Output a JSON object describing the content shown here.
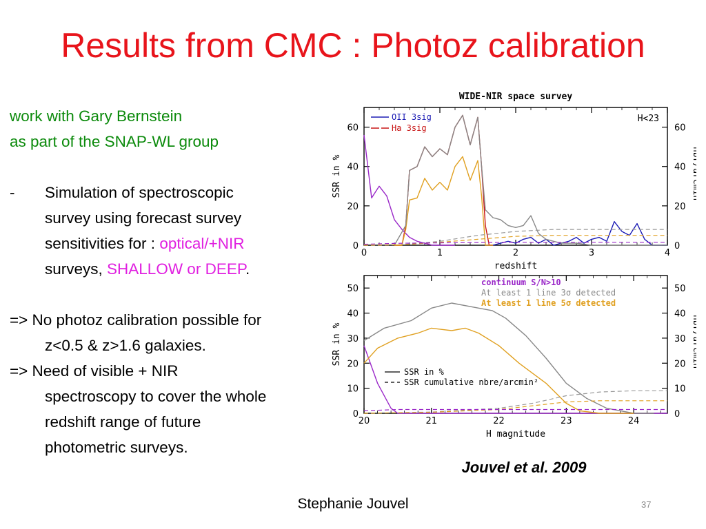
{
  "slide": {
    "title": "Results from CMC : Photoz calibration",
    "line1": "work with Gary Bernstein",
    "line2": "as part of the SNAP-WL group",
    "bullet_dash": "-",
    "bullet_l1": "Simulation of spectroscopic",
    "bullet_l2": "survey using forecast survey",
    "bullet_l3a": "sensitivities for : ",
    "bullet_l3b": "optical/+NIR",
    "bullet_l4a": "surveys, ",
    "bullet_l4b": "SHALLOW or DEEP",
    "bullet_l4c": ".",
    "c1_l1": "=> No photoz calibration possible for",
    "c1_l2": "z<0.5 & z>1.6 galaxies.",
    "c2_l1": "=> Need of visible + NIR",
    "c2_l2": "spectroscopy to cover the whole",
    "c2_l3": "redshift range of future",
    "c2_l4": "photometric surveys.",
    "citation": "Jouvel et al. 2009",
    "author": "Stephanie Jouvel",
    "page": "37"
  },
  "colors": {
    "title": "#e8141b",
    "green": "#0b8a0b",
    "magenta": "#e020e0"
  },
  "chart_data": [
    {
      "type": "line",
      "title": "WIDE-NIR space survey",
      "annotation": "H<23",
      "xlabel": "redshift",
      "ylabel": "SSR in %",
      "y2label": "nbr/arcmin²",
      "xlim": [
        0,
        4
      ],
      "ylim": [
        0,
        70
      ],
      "xticks": [
        "0",
        "1",
        "2",
        "3",
        "4"
      ],
      "yticks": [
        "0",
        "20",
        "40",
        "60"
      ],
      "y2ticks": [
        "0",
        "20",
        "40",
        "60"
      ],
      "legend": [
        "OII 3sig",
        "Ha 3sig"
      ],
      "series": [
        {
          "name": "OII 3sig",
          "color": "#1a1ab4",
          "dashed": false,
          "x": [
            1.6,
            1.7,
            1.8,
            1.9,
            2.0,
            2.1,
            2.2,
            2.3,
            2.4,
            2.5,
            2.6,
            2.7,
            2.8,
            2.9,
            3.0,
            3.1,
            3.2,
            3.3,
            3.4,
            3.5,
            3.6,
            3.7,
            3.8,
            3.9,
            4.0
          ],
          "y": [
            0,
            0,
            1,
            2,
            1,
            3,
            4,
            1,
            3,
            0,
            1,
            2,
            4,
            1,
            3,
            4,
            2,
            12,
            7,
            5,
            11,
            3,
            0,
            0,
            0
          ]
        },
        {
          "name": "Ha 3sig",
          "color": "#c81414",
          "dashed": false,
          "x": [
            0.4,
            0.45,
            0.5,
            0.55,
            0.6,
            0.7,
            0.8,
            0.9,
            1.0,
            1.1,
            1.2,
            1.3,
            1.4,
            1.5,
            1.55,
            1.6,
            1.65,
            1.7
          ],
          "y": [
            0,
            0,
            0,
            10,
            38,
            40,
            50,
            45,
            49,
            46,
            60,
            66,
            51,
            65,
            40,
            10,
            0,
            0
          ]
        },
        {
          "name": "",
          "color": "#9a28c8",
          "dashed": false,
          "x": [
            0.0,
            0.1,
            0.2,
            0.3,
            0.4,
            0.5,
            0.6,
            0.7,
            0.8,
            0.9,
            1.0,
            1.1,
            1.2
          ],
          "y": [
            56,
            24,
            30,
            25,
            13,
            8,
            4,
            2,
            1,
            0,
            0,
            0,
            0
          ]
        },
        {
          "name": "",
          "color": "#e0a020",
          "dashed": false,
          "x": [
            0.4,
            0.5,
            0.55,
            0.6,
            0.7,
            0.8,
            0.9,
            1.0,
            1.1,
            1.2,
            1.3,
            1.4,
            1.5,
            1.55,
            1.6,
            1.7
          ],
          "y": [
            0,
            0,
            8,
            23,
            24,
            34,
            28,
            32,
            28,
            40,
            45,
            33,
            43,
            25,
            0,
            0
          ]
        },
        {
          "name": "",
          "color": "#888888",
          "dashed": false,
          "x": [
            0.4,
            0.55,
            0.6,
            0.7,
            0.8,
            0.9,
            1.0,
            1.1,
            1.2,
            1.3,
            1.4,
            1.5,
            1.55,
            1.6,
            1.7,
            1.8,
            1.9,
            2.0,
            2.1,
            2.2,
            2.3,
            2.4,
            2.5,
            2.6,
            2.8,
            3.0,
            3.5,
            4.0
          ],
          "y": [
            0,
            10,
            38,
            40,
            50,
            45,
            49,
            46,
            60,
            66,
            51,
            65,
            40,
            18,
            14,
            13,
            10,
            9,
            10,
            15,
            6,
            3,
            2,
            1,
            1,
            0,
            0,
            0
          ]
        },
        {
          "name": "",
          "color": "#999999",
          "dashed": true,
          "axis": "y2",
          "x": [
            0,
            0.5,
            1.0,
            1.5,
            2.0,
            2.5,
            3.0,
            3.5,
            4.0
          ],
          "y": [
            0,
            0.3,
            2,
            5,
            7,
            8,
            8,
            8,
            8
          ]
        },
        {
          "name": "",
          "color": "#e0a020",
          "dashed": true,
          "axis": "y2",
          "x": [
            0,
            0.5,
            1.0,
            1.5,
            2.0,
            2.5,
            3.0,
            3.5,
            4.0
          ],
          "y": [
            0,
            0.2,
            1.5,
            3,
            4.5,
            5,
            5,
            5,
            5
          ]
        },
        {
          "name": "",
          "color": "#9a28c8",
          "dashed": true,
          "axis": "y2",
          "x": [
            0,
            0.5,
            1.0,
            1.5,
            2.0,
            2.5,
            3.0,
            3.5,
            4.0
          ],
          "y": [
            0.5,
            1,
            1.2,
            1.4,
            1.5,
            1.5,
            1.5,
            1.5,
            1.5
          ]
        }
      ]
    },
    {
      "type": "line",
      "xlabel": "H magnitude",
      "ylabel": "SSR in %",
      "y2label": "nbr/arcmin²",
      "xlim": [
        20,
        24.5
      ],
      "ylim": [
        0,
        55
      ],
      "xticks": [
        "20",
        "21",
        "22",
        "23",
        "24"
      ],
      "yticks": [
        "0",
        "10",
        "20",
        "30",
        "40",
        "50"
      ],
      "y2ticks": [
        "0",
        "10",
        "20",
        "30",
        "40",
        "50"
      ],
      "legend": [
        "continuum S/N>10",
        "At least 1 line 3σ detected",
        "At least 1 line 5σ detected"
      ],
      "legend_colors": [
        "#9a28c8",
        "#888888",
        "#e0a020"
      ],
      "legend2": [
        "SSR in %",
        "SSR cumulative nbre/arcmin²"
      ],
      "series": [
        {
          "name": "continuum S/N>10",
          "color": "#9a28c8",
          "dashed": false,
          "x": [
            20.0,
            20.2,
            20.4,
            20.5,
            21.0,
            22.0,
            23.0,
            24.0,
            24.5
          ],
          "y": [
            27,
            12,
            2,
            0,
            0,
            0,
            0,
            0,
            0
          ]
        },
        {
          "name": "At least 1 line 3σ detected",
          "color": "#888888",
          "dashed": false,
          "x": [
            20.0,
            20.3,
            20.7,
            21.0,
            21.3,
            21.7,
            21.9,
            22.1,
            22.4,
            22.7,
            23.0,
            23.3,
            23.6,
            24.0,
            24.3
          ],
          "y": [
            29,
            34,
            37,
            42,
            44,
            42,
            41,
            38,
            31,
            22,
            12,
            6,
            2,
            0,
            0
          ]
        },
        {
          "name": "At least 1 line 5σ detected",
          "color": "#e0a020",
          "dashed": false,
          "x": [
            20.0,
            20.2,
            20.5,
            20.8,
            21.0,
            21.3,
            21.5,
            21.7,
            22.0,
            22.3,
            22.7,
            23.0,
            23.2,
            23.5,
            24.0
          ],
          "y": [
            20,
            26,
            30,
            32,
            34,
            33,
            34,
            32,
            27,
            20,
            12,
            4,
            1,
            0,
            0
          ]
        },
        {
          "name": "",
          "color": "#999999",
          "dashed": true,
          "axis": "y2",
          "x": [
            20.0,
            21.0,
            22.0,
            22.5,
            23.0,
            23.5,
            24.0,
            24.5
          ],
          "y": [
            0,
            0.5,
            2,
            4,
            7,
            8.5,
            9,
            9
          ]
        },
        {
          "name": "",
          "color": "#e0a020",
          "dashed": true,
          "axis": "y2",
          "x": [
            20.0,
            21.0,
            22.0,
            22.5,
            23.0,
            23.5,
            24.0,
            24.5
          ],
          "y": [
            0,
            0.4,
            1.5,
            3,
            4.5,
            5,
            5,
            5
          ]
        },
        {
          "name": "",
          "color": "#9a28c8",
          "dashed": true,
          "axis": "y2",
          "x": [
            20.0,
            20.5,
            21.0,
            22.0,
            23.0,
            24.0,
            24.5
          ],
          "y": [
            1,
            1.5,
            1.5,
            1.5,
            1.5,
            1.5,
            1.5
          ]
        }
      ]
    }
  ]
}
